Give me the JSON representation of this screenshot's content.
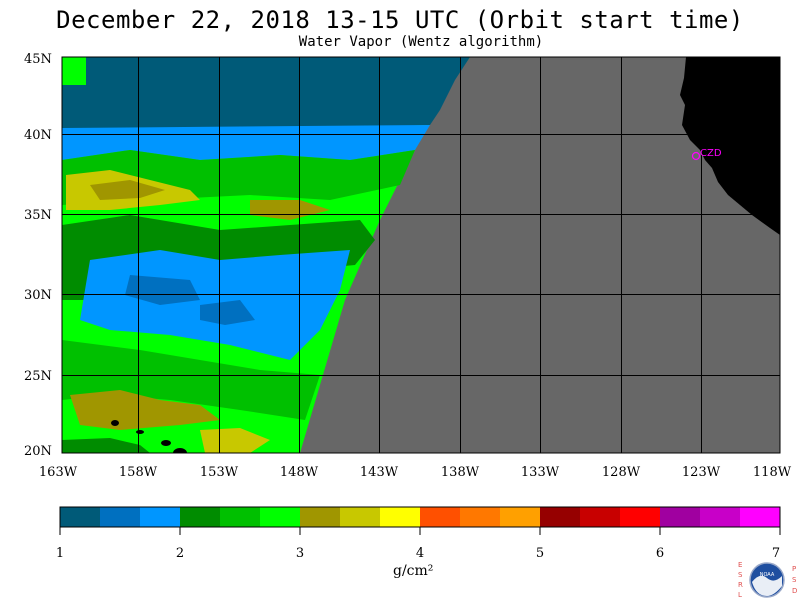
{
  "title": "December 22, 2018  13-15 UTC  (Orbit start time)",
  "subtitle": "Water Vapor (Wentz algorithm)",
  "lat_labels": [
    "45N",
    "40N",
    "35N",
    "30N",
    "25N",
    "20N"
  ],
  "lon_labels": [
    "163W",
    "158W",
    "153W",
    "148W",
    "143W",
    "138W",
    "133W",
    "128W",
    "123W",
    "118W"
  ],
  "station_label": "CZD",
  "colorbar": {
    "ticks": [
      "1",
      "2",
      "3",
      "4",
      "5",
      "6",
      "7"
    ],
    "unit": "g/cm²",
    "colors": [
      "#005a78",
      "#0070c0",
      "#0096ff",
      "#008c00",
      "#00c000",
      "#00ff00",
      "#a09600",
      "#c8c800",
      "#ffff00",
      "#ff5000",
      "#ff7800",
      "#ffa000",
      "#960000",
      "#c80000",
      "#ff0000",
      "#a000a0",
      "#c800c8",
      "#ff00ff"
    ]
  },
  "logo": {
    "left_letters": [
      "E",
      "S",
      "R",
      "L"
    ],
    "right_letters": [
      "P",
      "S",
      "D"
    ],
    "center_text": "NOAA"
  },
  "colors": {
    "no_data": "#676767",
    "land": "#000000",
    "station": "#ff00ff"
  }
}
